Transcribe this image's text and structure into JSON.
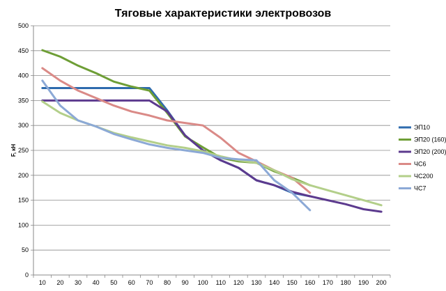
{
  "chart_data": {
    "type": "line",
    "title": "Тяговые характеристики электровозов",
    "xlabel": "",
    "ylabel": "F, кН",
    "x_ticks": [
      10,
      20,
      30,
      40,
      50,
      60,
      70,
      80,
      90,
      100,
      110,
      120,
      130,
      140,
      150,
      160,
      170,
      180,
      190,
      200
    ],
    "ylim": [
      0,
      500
    ],
    "y_ticks": [
      0,
      50,
      100,
      150,
      200,
      250,
      300,
      350,
      400,
      450,
      500
    ],
    "grid": "horizontal",
    "legend_position": "right",
    "series": [
      {
        "name": "ЭП10",
        "color": "#2E6BAE",
        "x": [
          10,
          20,
          30,
          40,
          50,
          60,
          70,
          80,
          90,
          100,
          110,
          120,
          130,
          140,
          150,
          160
        ],
        "y": [
          375,
          375,
          375,
          375,
          375,
          375,
          375,
          330,
          280,
          250,
          230,
          215,
          190,
          180,
          165,
          158
        ]
      },
      {
        "name": "ЭП20 (160)",
        "color": "#6E9E36",
        "x": [
          10,
          20,
          30,
          40,
          50,
          60,
          70,
          80,
          90,
          100,
          110,
          120,
          130,
          140,
          150,
          160
        ],
        "y": [
          451,
          438,
          420,
          405,
          388,
          378,
          370,
          325,
          278,
          256,
          235,
          228,
          225,
          208,
          195,
          180
        ]
      },
      {
        "name": "ЭП20 (200)",
        "color": "#5C3A8E",
        "x": [
          10,
          20,
          30,
          40,
          50,
          60,
          70,
          80,
          90,
          100,
          110,
          120,
          130,
          140,
          150,
          160,
          170,
          180,
          190,
          200
        ],
        "y": [
          350,
          350,
          350,
          350,
          350,
          350,
          350,
          328,
          280,
          250,
          230,
          215,
          190,
          180,
          167,
          158,
          150,
          142,
          132,
          127
        ]
      },
      {
        "name": "ЧС6",
        "color": "#DA8A87",
        "x": [
          10,
          20,
          30,
          40,
          50,
          60,
          70,
          80,
          90,
          100,
          110,
          120,
          130,
          140,
          150,
          160
        ],
        "y": [
          415,
          390,
          370,
          355,
          340,
          328,
          320,
          310,
          305,
          300,
          275,
          245,
          228,
          210,
          195,
          165
        ]
      },
      {
        "name": "ЧС200",
        "color": "#B3CF8A",
        "x": [
          10,
          20,
          30,
          40,
          50,
          60,
          70,
          80,
          90,
          100,
          110,
          120,
          130,
          140,
          150,
          160,
          170,
          180,
          190,
          200
        ],
        "y": [
          348,
          325,
          310,
          298,
          285,
          276,
          268,
          260,
          255,
          248,
          238,
          230,
          225,
          210,
          192,
          180,
          170,
          160,
          150,
          140
        ]
      },
      {
        "name": "ЧС7",
        "color": "#8CA9D6",
        "x": [
          10,
          20,
          30,
          40,
          50,
          60,
          70,
          80,
          90,
          100,
          110,
          120,
          130,
          140,
          150,
          160
        ],
        "y": [
          390,
          340,
          310,
          298,
          283,
          272,
          262,
          255,
          250,
          245,
          235,
          232,
          230,
          190,
          165,
          130
        ]
      }
    ]
  }
}
